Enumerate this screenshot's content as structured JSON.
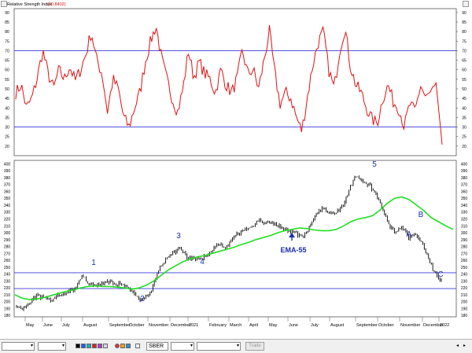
{
  "rsi_panel": {
    "title": "Relative Strength Index",
    "value": "(20.8402)",
    "ticks": [
      "90",
      "85",
      "80",
      "75",
      "70",
      "65",
      "60",
      "55",
      "50",
      "45",
      "40",
      "35",
      "30",
      "25",
      "20"
    ],
    "levels": [
      70,
      30
    ]
  },
  "price_panel": {
    "ticks": [
      "400",
      "390",
      "380",
      "370",
      "360",
      "350",
      "340",
      "330",
      "320",
      "310",
      "300",
      "290",
      "280",
      "270",
      "260",
      "250",
      "240",
      "230",
      "220",
      "210",
      "200",
      "190",
      "180"
    ],
    "h_lines": [
      242,
      219
    ],
    "ema_label": "EMA-55",
    "wave_labels": [
      "1",
      "2",
      "3",
      "4",
      "5",
      "A",
      "B",
      "C"
    ],
    "colors": {
      "price": "#000000",
      "ema": "#22dd22",
      "labels": "#1a2db0",
      "hline": "#3a3ad8",
      "rsi": "#e01010"
    }
  },
  "x_axis": {
    "months": [
      "May",
      "June",
      "July",
      "August",
      "September",
      "October",
      "November",
      "December",
      "2021",
      "February",
      "March",
      "April",
      "May",
      "June",
      "July",
      "August",
      "September",
      "October",
      "November",
      "December",
      "2022"
    ]
  },
  "chart_data": [
    {
      "type": "line",
      "title": "Relative Strength Index",
      "series": [
        {
          "name": "Relative Strength Index",
          "values": [
            48,
            52,
            40,
            45,
            56,
            70,
            58,
            50,
            60,
            55,
            62,
            54,
            60,
            68,
            80,
            65,
            58,
            38,
            55,
            50,
            35,
            30,
            40,
            48,
            64,
            75,
            83,
            66,
            55,
            45,
            38,
            50,
            70,
            56,
            64,
            58,
            55,
            48,
            60,
            52,
            48,
            55,
            70,
            58,
            60,
            50,
            65,
            80,
            58,
            42,
            48,
            45,
            35,
            28,
            45,
            62,
            74,
            80,
            60,
            50,
            70,
            82,
            62,
            52,
            48,
            40,
            34,
            32,
            45,
            52,
            43,
            40,
            30,
            42,
            38,
            52,
            45,
            48,
            50,
            20.8
          ]
        }
      ],
      "ylim": [
        15,
        92
      ],
      "reference_lines": [
        70,
        30
      ]
    },
    {
      "type": "line",
      "series": [
        {
          "name": "",
          "values": [
            195,
            190,
            200,
            208,
            205,
            202,
            207,
            210,
            215,
            220,
            238,
            228,
            222,
            225,
            230,
            225,
            228,
            218,
            210,
            203,
            208,
            225,
            250,
            265,
            270,
            278,
            265,
            262,
            260,
            268,
            275,
            285,
            280,
            290,
            300,
            305,
            310,
            318,
            312,
            315,
            310,
            305,
            302,
            298,
            295,
            310,
            330,
            335,
            328,
            330,
            340,
            365,
            385,
            372,
            370,
            355,
            335,
            310,
            300,
            308,
            292,
            300,
            285,
            265,
            240,
            232
          ]
        },
        {
          "name": "EMA-55",
          "values": [
            210,
            205,
            203,
            204,
            206,
            209,
            212,
            215,
            217,
            220,
            222,
            223,
            222,
            222,
            221,
            220,
            218,
            220,
            224,
            230,
            238,
            246,
            252,
            258,
            262,
            265,
            267,
            270,
            273,
            276,
            279,
            283,
            286,
            290,
            293,
            296,
            300,
            303,
            305,
            307,
            306,
            304,
            303,
            303,
            305,
            310,
            316,
            320,
            322,
            325,
            333,
            343,
            350,
            352,
            348,
            340,
            332,
            322,
            316,
            310,
            305
          ]
        }
      ],
      "ylim": [
        178,
        405
      ],
      "reference_lines": [
        242,
        219
      ]
    }
  ]
}
